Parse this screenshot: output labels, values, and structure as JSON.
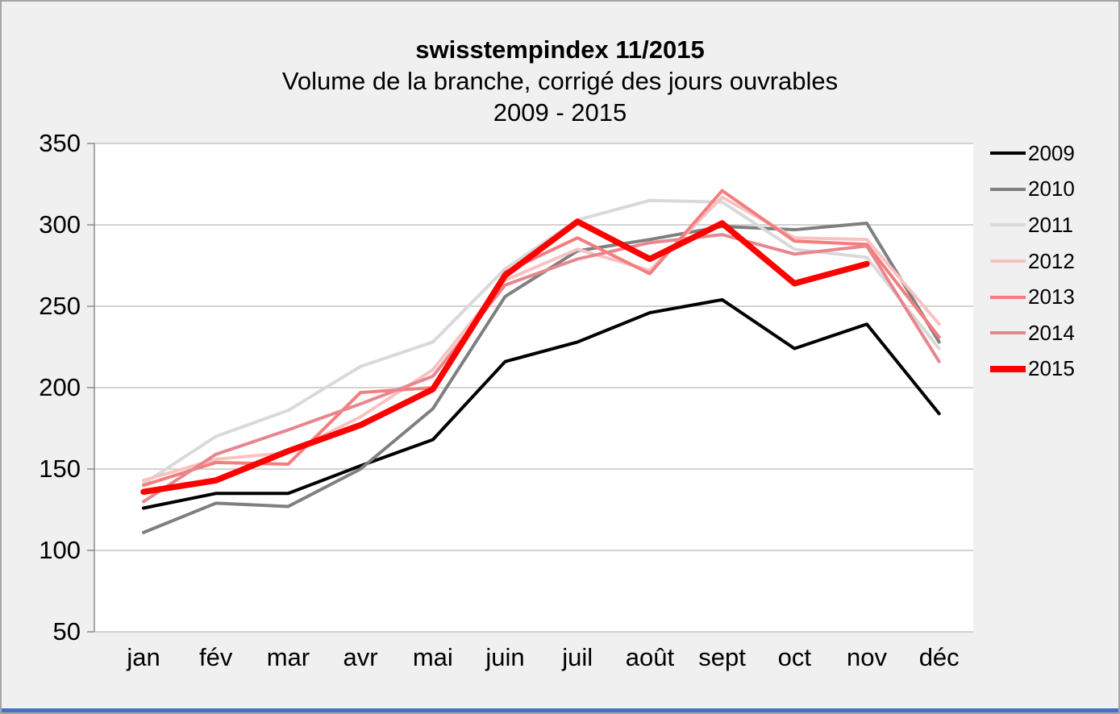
{
  "frame": {
    "background_color": "#f0f0f0",
    "border_color": "#a6a6a6",
    "plot_background": "#ffffff",
    "gridline_color": "#b9b9b9",
    "axis_color": "#8c8c8c",
    "accent_bar_color": "#4472c4"
  },
  "chart_data": {
    "type": "line",
    "title": "swisstempindex 11/2015",
    "subtitle": "Volume de la branche, corrigé des jours ouvrables",
    "period": "2009 - 2015",
    "categories": [
      "jan",
      "fév",
      "mar",
      "avr",
      "mai",
      "juin",
      "juil",
      "août",
      "sept",
      "oct",
      "nov",
      "déc"
    ],
    "ylim": [
      50,
      350
    ],
    "yticks": [
      350,
      300,
      250,
      200,
      150,
      100,
      50
    ],
    "grid": "horizontal",
    "legend_position": "right",
    "series": [
      {
        "name": "2009",
        "color": "#000000",
        "width": 4,
        "values": [
          126,
          135,
          135,
          152,
          168,
          216,
          228,
          246,
          254,
          224,
          239,
          184
        ]
      },
      {
        "name": "2010",
        "color": "#7f7f7f",
        "width": 4,
        "values": [
          111,
          129,
          127,
          150,
          187,
          256,
          284,
          291,
          299,
          297,
          301,
          228
        ]
      },
      {
        "name": "2011",
        "color": "#d9d9d9",
        "width": 4,
        "values": [
          141,
          170,
          186,
          213,
          228,
          273,
          303,
          315,
          314,
          285,
          280,
          224
        ]
      },
      {
        "name": "2012",
        "color": "#f9c2c2",
        "width": 4,
        "values": [
          143,
          156,
          160,
          182,
          211,
          266,
          285,
          272,
          317,
          292,
          291,
          239
        ]
      },
      {
        "name": "2013",
        "color": "#f47d7d",
        "width": 4,
        "values": [
          140,
          154,
          153,
          197,
          200,
          271,
          292,
          270,
          321,
          290,
          288,
          231
        ]
      },
      {
        "name": "2014",
        "color": "#e8868f",
        "width": 4,
        "values": [
          130,
          159,
          174,
          190,
          207,
          263,
          279,
          289,
          294,
          282,
          287,
          216
        ]
      },
      {
        "name": "2015",
        "color": "#fe0000",
        "width": 7.5,
        "values": [
          136,
          143,
          161,
          177,
          199,
          269,
          302,
          279,
          301,
          264,
          276,
          null
        ]
      }
    ]
  }
}
